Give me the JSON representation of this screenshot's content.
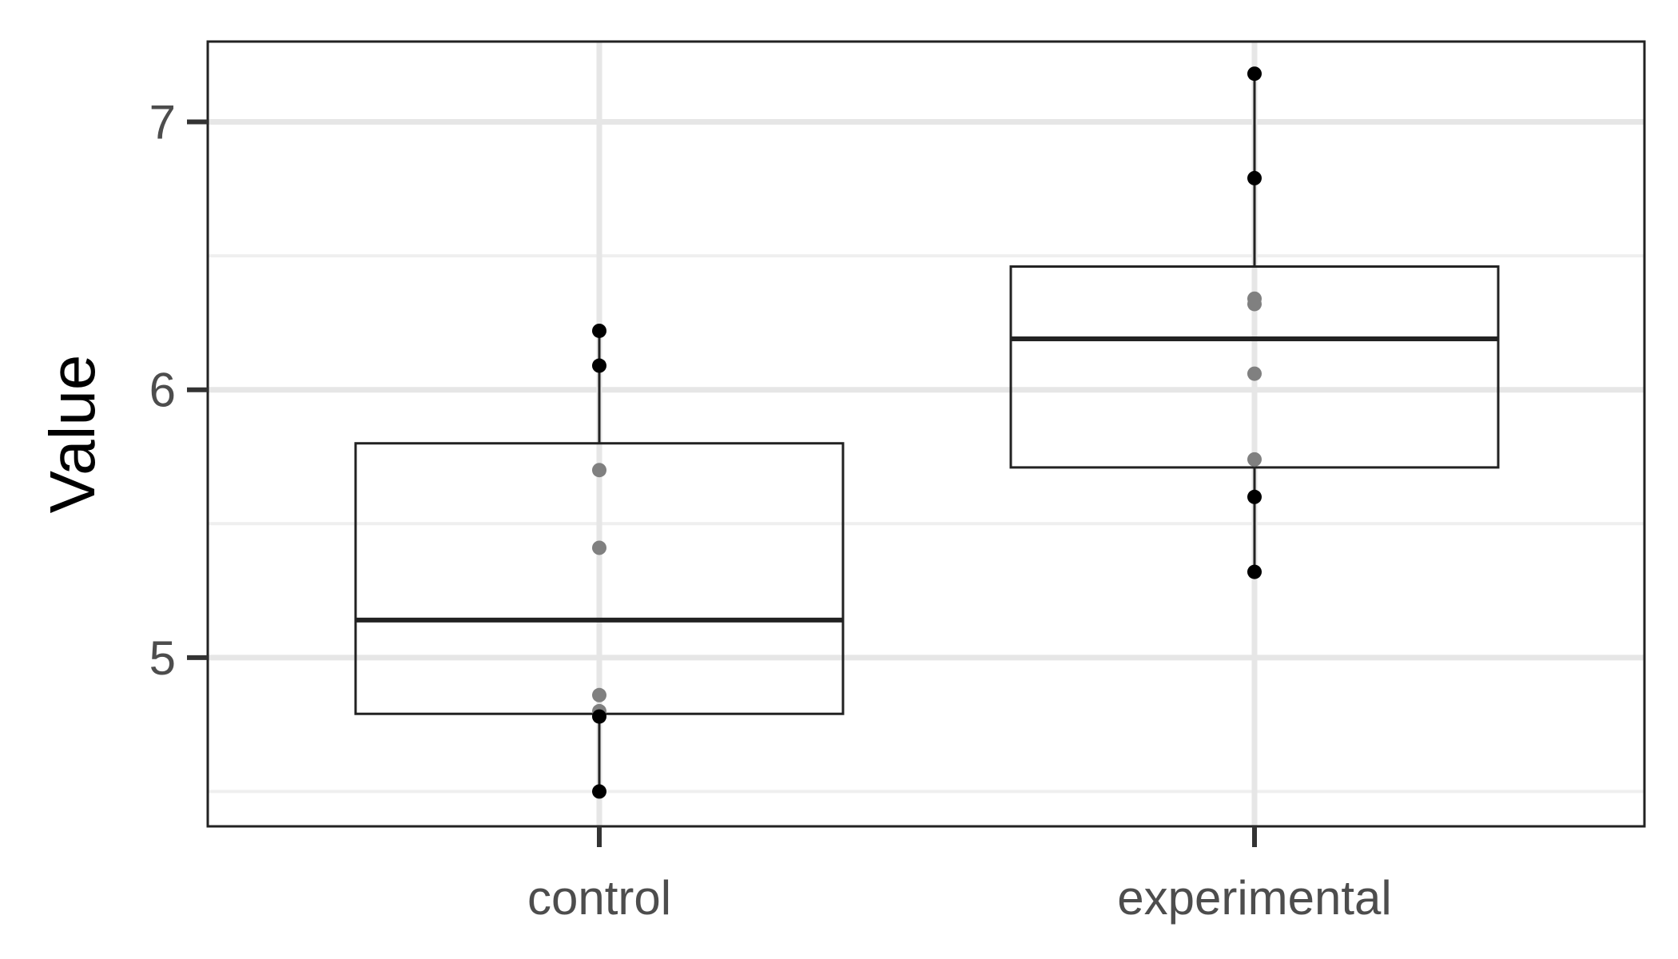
{
  "chart_data": {
    "type": "box",
    "title": "",
    "xlabel": "",
    "ylabel": "Value",
    "ylim": [
      4.37,
      7.3
    ],
    "y_ticks": [
      "5",
      "6",
      "7"
    ],
    "y_minor_ticks": [
      4.5,
      5.5,
      6.5
    ],
    "grid": true,
    "categories": [
      "control",
      "experimental"
    ],
    "boxes": [
      {
        "category": "control",
        "q1": 4.79,
        "median": 5.14,
        "q3": 5.8,
        "whisker_low": 4.5,
        "whisker_high": 6.22
      },
      {
        "category": "experimental",
        "q1": 5.71,
        "median": 6.19,
        "q3": 6.46,
        "whisker_low": 5.32,
        "whisker_high": 7.18
      }
    ],
    "points": [
      {
        "category": "control",
        "values": [
          6.22,
          6.09,
          5.7,
          5.41,
          4.86,
          4.8,
          4.78,
          4.5
        ]
      },
      {
        "category": "experimental",
        "values": [
          7.18,
          6.79,
          6.34,
          6.32,
          6.06,
          5.74,
          5.6,
          5.32
        ]
      }
    ],
    "colors": {
      "point_outside_box": "#000000",
      "point_inside_box": "#808080",
      "box_stroke": "#222222",
      "grid_major": "#e6e6e6",
      "grid_minor": "#efefef",
      "panel_border": "#222222"
    }
  }
}
